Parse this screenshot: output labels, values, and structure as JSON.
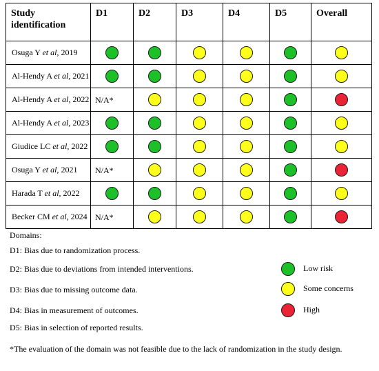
{
  "table": {
    "headers": [
      "Study identification",
      "D1",
      "D2",
      "D3",
      "D4",
      "D5",
      "Overall"
    ],
    "rows": [
      {
        "author": "Osuga Y",
        "etal": "et al,",
        "year": "2019",
        "d": [
          "low",
          "low",
          "some",
          "some",
          "low",
          "some"
        ],
        "na": ""
      },
      {
        "author": "Al-Hendy A",
        "etal": "et al,",
        "year": "2021",
        "d": [
          "low",
          "low",
          "some",
          "some",
          "low",
          "some"
        ],
        "na": ""
      },
      {
        "author": "Al-Hendy A",
        "etal": "et al,",
        "year": "2022",
        "d": [
          "",
          "some",
          "some",
          "some",
          "low",
          "high"
        ],
        "na": "N/A*"
      },
      {
        "author": "Al-Hendy A",
        "etal": "et al,",
        "year": "2023",
        "d": [
          "low",
          "low",
          "some",
          "some",
          "low",
          "some"
        ],
        "na": ""
      },
      {
        "author": "Giudice LC",
        "etal": "et al,",
        "year": "2022",
        "d": [
          "low",
          "low",
          "some",
          "some",
          "low",
          "some"
        ],
        "na": ""
      },
      {
        "author": "Osuga Y",
        "etal": "et al,",
        "year": "2021",
        "d": [
          "",
          "some",
          "some",
          "some",
          "low",
          "high"
        ],
        "na": "N/A*"
      },
      {
        "author": "Harada T",
        "etal": "et al,",
        "year": "2022",
        "d": [
          "low",
          "low",
          "some",
          "some",
          "low",
          "some"
        ],
        "na": ""
      },
      {
        "author": "Becker CM",
        "etal": "et al,",
        "year": "2024",
        "d": [
          "",
          "some",
          "some",
          "some",
          "low",
          "high"
        ],
        "na": "N/A*"
      }
    ]
  },
  "domains": {
    "heading": "Domains:",
    "items": [
      "D1: Bias due to randomization process.",
      "D2: Bias due to deviations from intended interventions.",
      "D3: Bias due to missing outcome data.",
      "D4: Bias in measurement of outcomes.",
      "D5: Bias in selection of reported results."
    ]
  },
  "legend": [
    {
      "level": "low",
      "label": "Low risk",
      "color": "#1ec02a"
    },
    {
      "level": "some",
      "label": "Some concerns",
      "color": "#ffff1c"
    },
    {
      "level": "high",
      "label": "High",
      "color": "#ea2336"
    }
  ],
  "footnote": "*The evaluation of the domain was not feasible due to the lack of randomization in the study design."
}
